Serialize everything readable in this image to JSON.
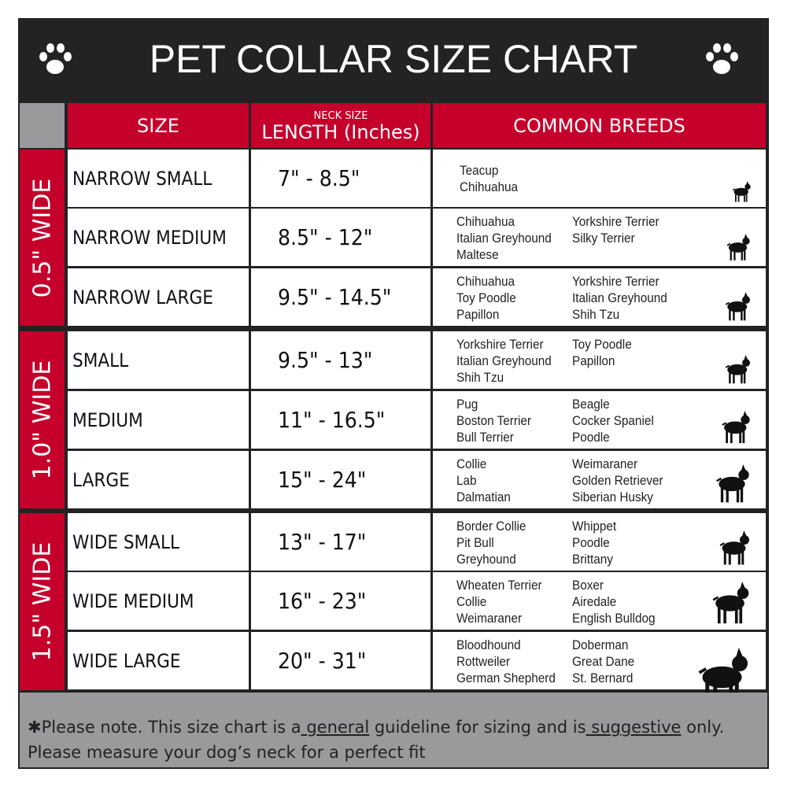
{
  "title": "PET COLLAR SIZE CHART",
  "colors": {
    "accent_red": "#c4002b",
    "dark": "#232323",
    "gray": "#9a9a9c"
  },
  "icons": {
    "corner": "paw-print-icon"
  },
  "headers": {
    "size": "SIZE",
    "length_small": "NECK SIZE",
    "length": "LENGTH (Inches)",
    "breeds": "COMMON BREEDS"
  },
  "groups": [
    {
      "label": "0.5\" WIDE",
      "rows": [
        {
          "size": "NARROW SMALL",
          "length": "7\" - 8.5\"",
          "breeds_col1": [
            "Teacup",
            "Chihuahua"
          ],
          "breeds_col2": [],
          "icon": "yorkie-silhouette-icon"
        },
        {
          "size": "NARROW MEDIUM",
          "length": "8.5\" - 12\"",
          "breeds_col1": [
            "Chihuahua",
            "Italian Greyhound",
            "Maltese"
          ],
          "breeds_col2": [
            "Yorkshire Terrier",
            "Silky Terrier"
          ],
          "icon": "chihuahua-silhouette-icon"
        },
        {
          "size": "NARROW LARGE",
          "length": "9.5\" - 14.5\"",
          "breeds_col1": [
            "Chihuahua",
            "Toy Poodle",
            "Papillon"
          ],
          "breeds_col2": [
            "Yorkshire Terrier",
            "Italian Greyhound",
            "Shih Tzu"
          ],
          "icon": "pomeranian-silhouette-icon"
        }
      ]
    },
    {
      "label": "1.0\" WIDE",
      "rows": [
        {
          "size": "SMALL",
          "length": "9.5\" - 13\"",
          "breeds_col1": [
            "Yorkshire Terrier",
            "Italian Greyhound",
            "Shih Tzu"
          ],
          "breeds_col2": [
            "Toy Poodle",
            "Papillon"
          ],
          "icon": "pomeranian-silhouette-icon"
        },
        {
          "size": "MEDIUM",
          "length": "11\" - 16.5\"",
          "breeds_col1": [
            "Pug",
            "Boston Terrier",
            "Bull Terrier"
          ],
          "breeds_col2": [
            "Beagle",
            "Cocker Spaniel",
            "Poodle"
          ],
          "icon": "dachshund-silhouette-icon"
        },
        {
          "size": "LARGE",
          "length": "15\" - 24\"",
          "breeds_col1": [
            "Collie",
            "Lab",
            "Dalmatian"
          ],
          "breeds_col2": [
            "Weimaraner",
            "Golden Retriever",
            "Siberian Husky"
          ],
          "icon": "shepherd-silhouette-icon"
        }
      ]
    },
    {
      "label": "1.5\" WIDE",
      "rows": [
        {
          "size": "WIDE SMALL",
          "length": "13\" - 17\"",
          "breeds_col1": [
            "Border Collie",
            "Pit Bull",
            "Greyhound"
          ],
          "breeds_col2": [
            "Whippet",
            "Poodle",
            "Brittany"
          ],
          "icon": "bulldog-silhouette-icon"
        },
        {
          "size": "WIDE MEDIUM",
          "length": "16\" - 23\"",
          "breeds_col1": [
            "Wheaten Terrier",
            "Collie",
            "Weimaraner"
          ],
          "breeds_col2": [
            "Boxer",
            "Airedale",
            "English Bulldog"
          ],
          "icon": "pitbull-silhouette-icon"
        },
        {
          "size": "WIDE LARGE",
          "length": "20\" - 31\"",
          "breeds_col1": [
            "Bloodhound",
            "Rottweiler",
            "German Shepherd"
          ],
          "breeds_col2": [
            "Doberman",
            "Great Dane",
            "St. Bernard"
          ],
          "icon": "doberman-silhouette-icon"
        }
      ]
    }
  ],
  "footer": {
    "part1": "✱Please note. This size chart is a",
    "general": " general",
    "part2": " guideline for sizing and is",
    "suggestive": " suggestive",
    "part3": " only.",
    "line2": "Please measure your dog’s neck for a perfect fit"
  }
}
